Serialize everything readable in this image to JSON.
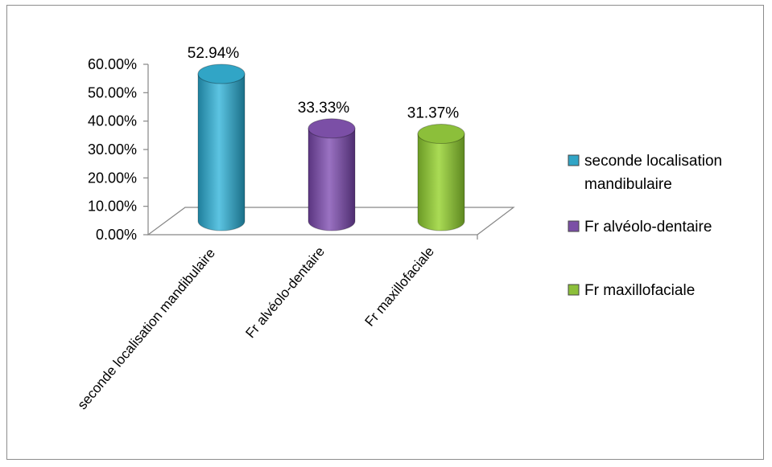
{
  "chart_data": {
    "type": "bar",
    "style": "3d-cylinder",
    "categories": [
      "seconde localisation mandibulaire",
      "Fr alvéolo-dentaire",
      "Fr maxillofaciale"
    ],
    "values": [
      52.94,
      33.33,
      31.37
    ],
    "data_labels": [
      "52.94%",
      "33.33%",
      "31.37%"
    ],
    "ylim": [
      0,
      60
    ],
    "y_ticks": [
      0,
      10,
      20,
      30,
      40,
      50,
      60
    ],
    "y_tick_labels": [
      "0.00%",
      "10.00%",
      "20.00%",
      "30.00%",
      "40.00%",
      "50.00%",
      "60.00%"
    ],
    "legend": {
      "placement": "right",
      "entries": [
        "seconde localisation mandibulaire",
        "Fr alvéolo-dentaire",
        "Fr maxillofaciale"
      ]
    },
    "colors": [
      "#31a5c6",
      "#7b4fa6",
      "#8cbf3a"
    ],
    "grid": false
  }
}
